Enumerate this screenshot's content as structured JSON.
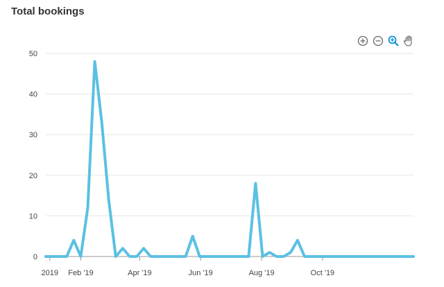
{
  "title": "Total bookings",
  "toolbar": {
    "zoom_in": "zoom-in-icon",
    "zoom_out": "zoom-out-icon",
    "zoom_selection": "zoom-selection-icon",
    "pan": "pan-hand-icon"
  },
  "colors": {
    "line": "#5BC0E3",
    "grid": "#e6e6e6",
    "axis": "#999999",
    "accent": "#0a8fd0"
  },
  "chart_data": {
    "type": "line",
    "title": "Total bookings",
    "xlabel": "",
    "ylabel": "",
    "ylim": [
      0,
      50
    ],
    "yticks": [
      0,
      10,
      20,
      30,
      40,
      50
    ],
    "xlim": [
      "2018-12-28",
      "2019-12-31"
    ],
    "xticks": [
      {
        "date": "2019-01-01",
        "label": "2019"
      },
      {
        "date": "2019-02-01",
        "label": "Feb '19"
      },
      {
        "date": "2019-04-01",
        "label": "Apr '19"
      },
      {
        "date": "2019-06-01",
        "label": "Jun '19"
      },
      {
        "date": "2019-08-01",
        "label": "Aug '19"
      },
      {
        "date": "2019-10-01",
        "label": "Oct '19"
      }
    ],
    "grid": true,
    "series": [
      {
        "points": [
          [
            "2018-12-28",
            0
          ],
          [
            "2019-01-04",
            0
          ],
          [
            "2019-01-11",
            0
          ],
          [
            "2019-01-18",
            0
          ],
          [
            "2019-01-25",
            4
          ],
          [
            "2019-02-01",
            0
          ],
          [
            "2019-02-08",
            12
          ],
          [
            "2019-02-15",
            48
          ],
          [
            "2019-02-22",
            33
          ],
          [
            "2019-03-01",
            14
          ],
          [
            "2019-03-08",
            0
          ],
          [
            "2019-03-15",
            2
          ],
          [
            "2019-03-22",
            0
          ],
          [
            "2019-03-29",
            0
          ],
          [
            "2019-04-05",
            2
          ],
          [
            "2019-04-12",
            0
          ],
          [
            "2019-04-19",
            0
          ],
          [
            "2019-04-26",
            0
          ],
          [
            "2019-05-03",
            0
          ],
          [
            "2019-05-10",
            0
          ],
          [
            "2019-05-17",
            0
          ],
          [
            "2019-05-24",
            5
          ],
          [
            "2019-05-31",
            0
          ],
          [
            "2019-06-07",
            0
          ],
          [
            "2019-06-14",
            0
          ],
          [
            "2019-06-21",
            0
          ],
          [
            "2019-06-28",
            0
          ],
          [
            "2019-07-05",
            0
          ],
          [
            "2019-07-12",
            0
          ],
          [
            "2019-07-19",
            0
          ],
          [
            "2019-07-26",
            18
          ],
          [
            "2019-08-02",
            0
          ],
          [
            "2019-08-09",
            1
          ],
          [
            "2019-08-16",
            0
          ],
          [
            "2019-08-23",
            0
          ],
          [
            "2019-08-30",
            1
          ],
          [
            "2019-09-06",
            4
          ],
          [
            "2019-09-13",
            0
          ],
          [
            "2019-09-20",
            0
          ],
          [
            "2019-09-27",
            0
          ],
          [
            "2019-10-04",
            0
          ],
          [
            "2019-10-11",
            0
          ],
          [
            "2019-10-18",
            0
          ],
          [
            "2019-10-25",
            0
          ],
          [
            "2019-11-01",
            0
          ],
          [
            "2019-11-08",
            0
          ],
          [
            "2019-11-15",
            0
          ],
          [
            "2019-11-22",
            0
          ],
          [
            "2019-11-29",
            0
          ],
          [
            "2019-12-06",
            0
          ],
          [
            "2019-12-13",
            0
          ],
          [
            "2019-12-20",
            0
          ],
          [
            "2019-12-27",
            0
          ],
          [
            "2019-12-31",
            0
          ]
        ]
      }
    ]
  }
}
